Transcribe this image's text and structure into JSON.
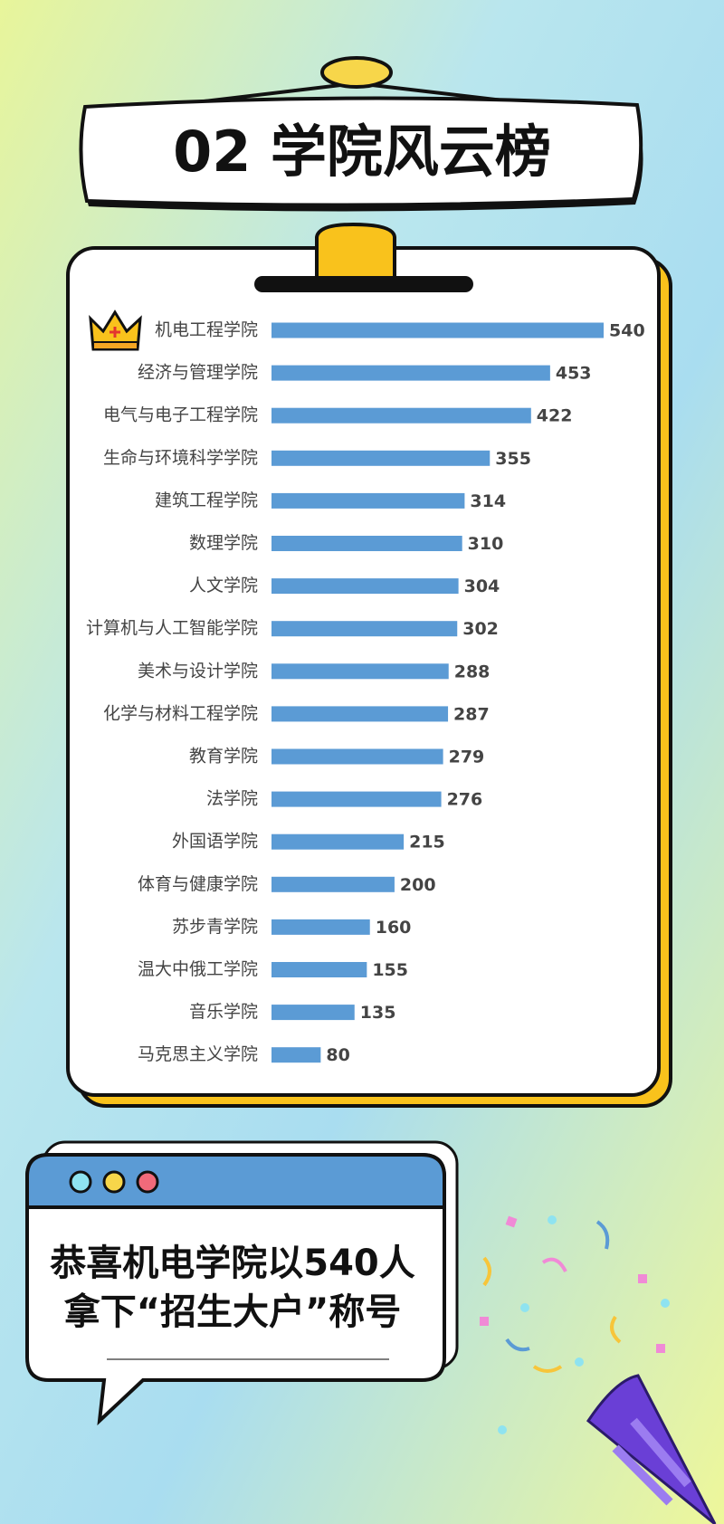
{
  "header": {
    "title": "02 学院风云榜"
  },
  "chart_data": {
    "type": "bar",
    "orientation": "horizontal",
    "color": "#5b9bd5",
    "categories": [
      "机电工程学院",
      "经济与管理学院",
      "电气与电子工程学院",
      "生命与环境科学学院",
      "建筑工程学院",
      "数理学院",
      "人文学院",
      "计算机与人工智能学院",
      "美术与设计学院",
      "化学与材料工程学院",
      "教育学院",
      "法学院",
      "外国语学院",
      "体育与健康学院",
      "苏步青学院",
      "温大中俄工学院",
      "音乐学院",
      "马克思主义学院"
    ],
    "values": [
      540,
      453,
      422,
      355,
      314,
      310,
      304,
      302,
      288,
      287,
      279,
      276,
      215,
      200,
      160,
      155,
      135,
      80
    ]
  },
  "callout": {
    "lines": [
      "恭喜机电学院以540人",
      "拿下“招生大户”称号"
    ]
  }
}
